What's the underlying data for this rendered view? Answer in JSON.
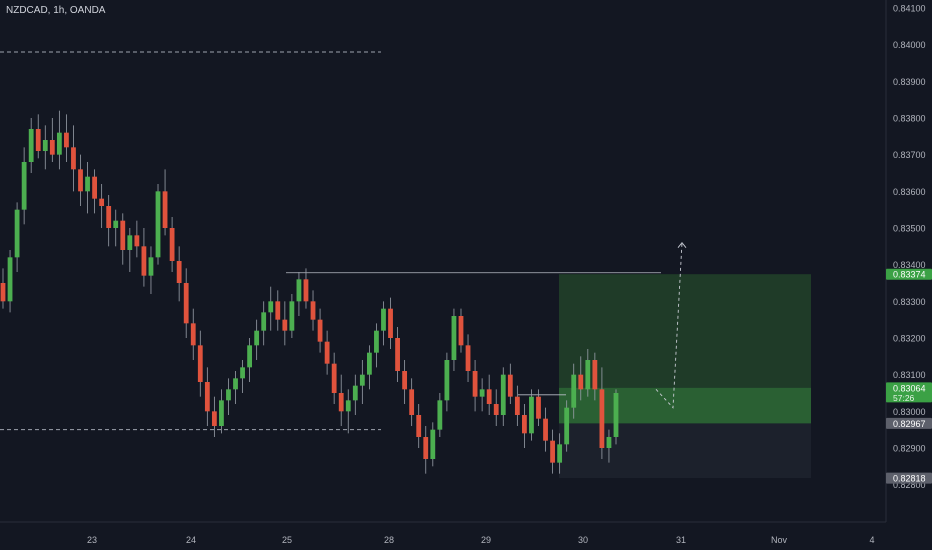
{
  "header": {
    "title": "NZDCAD, 1h, OANDA"
  },
  "colors": {
    "background": "#131722",
    "up": "#4caf50",
    "down": "#e0533d",
    "wick": "#9aa0aa",
    "axis_text": "#b2b5be",
    "profit_zone": "#1f3b28",
    "profit_zone_strong": "#2f6e37",
    "loss_zone": "#1c212c",
    "dashed": "#9ea3ad"
  },
  "chart_data": {
    "type": "candlestick",
    "title": "NZDCAD, 1h, OANDA",
    "symbol": "NZDCAD",
    "interval": "1h",
    "source": "OANDA",
    "ylim": [
      0.8275,
      0.841
    ],
    "y_ticks": [
      "0.84100",
      "0.84000",
      "0.83900",
      "0.83800",
      "0.83700",
      "0.83600",
      "0.83500",
      "0.83400",
      "0.83300",
      "0.83200",
      "0.83100",
      "0.83000",
      "0.82900",
      "0.82800"
    ],
    "x_ticks": [
      "23",
      "24",
      "25",
      "28",
      "29",
      "30",
      "31",
      "Nov",
      "4"
    ],
    "price_labels": [
      {
        "name": "take-profit",
        "value": "0.83374"
      },
      {
        "name": "current-price",
        "value": "0.83064",
        "countdown": "57:26"
      },
      {
        "name": "entry",
        "value": "0.82967"
      },
      {
        "name": "stop-loss",
        "value": "0.82818"
      }
    ],
    "position": {
      "type": "long",
      "entry": 0.82967,
      "take_profit": 0.83374,
      "stop_loss": 0.82818,
      "current": 0.83064
    },
    "levels": [
      {
        "name": "resistance-dashed",
        "price": 0.8398
      },
      {
        "name": "support-dashed",
        "price": 0.8295
      },
      {
        "name": "swing-high-line",
        "price": 0.83378
      },
      {
        "name": "mini-range-line",
        "price": 0.83045
      }
    ],
    "projection": [
      [
        0.8306,
        0.8301
      ],
      [
        0.8297,
        0.8346
      ]
    ],
    "candles": [
      [
        0.8335,
        0.8339,
        0.8328,
        0.833
      ],
      [
        0.833,
        0.8344,
        0.8327,
        0.8342
      ],
      [
        0.8342,
        0.8357,
        0.8338,
        0.8355
      ],
      [
        0.8355,
        0.8372,
        0.8351,
        0.8368
      ],
      [
        0.8368,
        0.838,
        0.8365,
        0.8377
      ],
      [
        0.8377,
        0.8381,
        0.8369,
        0.8371
      ],
      [
        0.8371,
        0.8378,
        0.8366,
        0.8374
      ],
      [
        0.8374,
        0.838,
        0.8368,
        0.837
      ],
      [
        0.837,
        0.8382,
        0.8366,
        0.8376
      ],
      [
        0.8376,
        0.8381,
        0.8368,
        0.8372
      ],
      [
        0.8372,
        0.8378,
        0.836,
        0.8366
      ],
      [
        0.8366,
        0.837,
        0.8356,
        0.836
      ],
      [
        0.836,
        0.8368,
        0.8354,
        0.8364
      ],
      [
        0.8364,
        0.8366,
        0.8354,
        0.8358
      ],
      [
        0.8358,
        0.8362,
        0.835,
        0.8356
      ],
      [
        0.8356,
        0.8359,
        0.8345,
        0.835
      ],
      [
        0.835,
        0.8355,
        0.8345,
        0.8352
      ],
      [
        0.8352,
        0.8354,
        0.834,
        0.8344
      ],
      [
        0.8344,
        0.835,
        0.8338,
        0.8348
      ],
      [
        0.8348,
        0.8352,
        0.8342,
        0.8345
      ],
      [
        0.8345,
        0.835,
        0.8334,
        0.8337
      ],
      [
        0.8337,
        0.8345,
        0.8332,
        0.8342
      ],
      [
        0.8342,
        0.8362,
        0.834,
        0.836
      ],
      [
        0.836,
        0.8366,
        0.8348,
        0.835
      ],
      [
        0.835,
        0.8353,
        0.8338,
        0.8341
      ],
      [
        0.8341,
        0.8345,
        0.833,
        0.8335
      ],
      [
        0.8335,
        0.8339,
        0.832,
        0.8324
      ],
      [
        0.8324,
        0.8328,
        0.8314,
        0.8318
      ],
      [
        0.8318,
        0.8322,
        0.8304,
        0.8308
      ],
      [
        0.8308,
        0.8312,
        0.8296,
        0.83
      ],
      [
        0.83,
        0.8304,
        0.8293,
        0.8296
      ],
      [
        0.8296,
        0.8306,
        0.8294,
        0.8303
      ],
      [
        0.8303,
        0.8309,
        0.8299,
        0.8306
      ],
      [
        0.8306,
        0.8311,
        0.8302,
        0.8309
      ],
      [
        0.8309,
        0.8314,
        0.8305,
        0.8312
      ],
      [
        0.8312,
        0.832,
        0.8308,
        0.8318
      ],
      [
        0.8318,
        0.8325,
        0.8314,
        0.8322
      ],
      [
        0.8322,
        0.833,
        0.8318,
        0.8327
      ],
      [
        0.8327,
        0.8334,
        0.8322,
        0.833
      ],
      [
        0.833,
        0.8333,
        0.8322,
        0.8325
      ],
      [
        0.8325,
        0.833,
        0.8318,
        0.8322
      ],
      [
        0.8322,
        0.8332,
        0.832,
        0.833
      ],
      [
        0.833,
        0.8338,
        0.8326,
        0.8336
      ],
      [
        0.8336,
        0.8339,
        0.8328,
        0.833
      ],
      [
        0.833,
        0.8333,
        0.8322,
        0.8325
      ],
      [
        0.8325,
        0.8328,
        0.8316,
        0.8319
      ],
      [
        0.8319,
        0.8322,
        0.831,
        0.8313
      ],
      [
        0.8313,
        0.8316,
        0.8302,
        0.8305
      ],
      [
        0.8305,
        0.831,
        0.8296,
        0.83
      ],
      [
        0.83,
        0.8306,
        0.8294,
        0.8303
      ],
      [
        0.8303,
        0.831,
        0.8299,
        0.8307
      ],
      [
        0.8307,
        0.8314,
        0.8302,
        0.831
      ],
      [
        0.831,
        0.8318,
        0.8306,
        0.8316
      ],
      [
        0.8316,
        0.8324,
        0.8312,
        0.8322
      ],
      [
        0.8322,
        0.833,
        0.8318,
        0.8328
      ],
      [
        0.8328,
        0.8331,
        0.8317,
        0.832
      ],
      [
        0.832,
        0.8323,
        0.8308,
        0.8311
      ],
      [
        0.8311,
        0.8314,
        0.8302,
        0.8306
      ],
      [
        0.8306,
        0.8309,
        0.8296,
        0.8299
      ],
      [
        0.8299,
        0.8302,
        0.829,
        0.8293
      ],
      [
        0.8293,
        0.8296,
        0.8283,
        0.8287
      ],
      [
        0.8287,
        0.8297,
        0.8285,
        0.8295
      ],
      [
        0.8295,
        0.8305,
        0.8293,
        0.8303
      ],
      [
        0.8303,
        0.8316,
        0.83,
        0.8314
      ],
      [
        0.8314,
        0.8328,
        0.8311,
        0.8326
      ],
      [
        0.8326,
        0.8328,
        0.8316,
        0.8318
      ],
      [
        0.8318,
        0.8321,
        0.8308,
        0.8311
      ],
      [
        0.8311,
        0.8314,
        0.83,
        0.8304
      ],
      [
        0.8304,
        0.8309,
        0.83,
        0.8306
      ],
      [
        0.8306,
        0.831,
        0.8299,
        0.8302
      ],
      [
        0.8302,
        0.8306,
        0.8296,
        0.8299
      ],
      [
        0.8299,
        0.8312,
        0.8296,
        0.831
      ],
      [
        0.831,
        0.8313,
        0.8302,
        0.8304
      ],
      [
        0.8304,
        0.8307,
        0.8296,
        0.8299
      ],
      [
        0.8299,
        0.8302,
        0.829,
        0.8294
      ],
      [
        0.8294,
        0.8306,
        0.8292,
        0.8304
      ],
      [
        0.8304,
        0.8306,
        0.8296,
        0.8298
      ],
      [
        0.8298,
        0.8301,
        0.8289,
        0.8292
      ],
      [
        0.8292,
        0.8295,
        0.8283,
        0.8286
      ],
      [
        0.8286,
        0.8294,
        0.8283,
        0.8291
      ],
      [
        0.8291,
        0.8303,
        0.8289,
        0.8301
      ],
      [
        0.8301,
        0.8313,
        0.8298,
        0.831
      ],
      [
        0.831,
        0.8315,
        0.8303,
        0.8306
      ],
      [
        0.8306,
        0.8317,
        0.8304,
        0.8314
      ],
      [
        0.8314,
        0.8316,
        0.8303,
        0.8306
      ],
      [
        0.8306,
        0.8312,
        0.8287,
        0.829
      ],
      [
        0.829,
        0.8295,
        0.8286,
        0.8293
      ],
      [
        0.8293,
        0.8306,
        0.8291,
        0.8305
      ]
    ]
  }
}
